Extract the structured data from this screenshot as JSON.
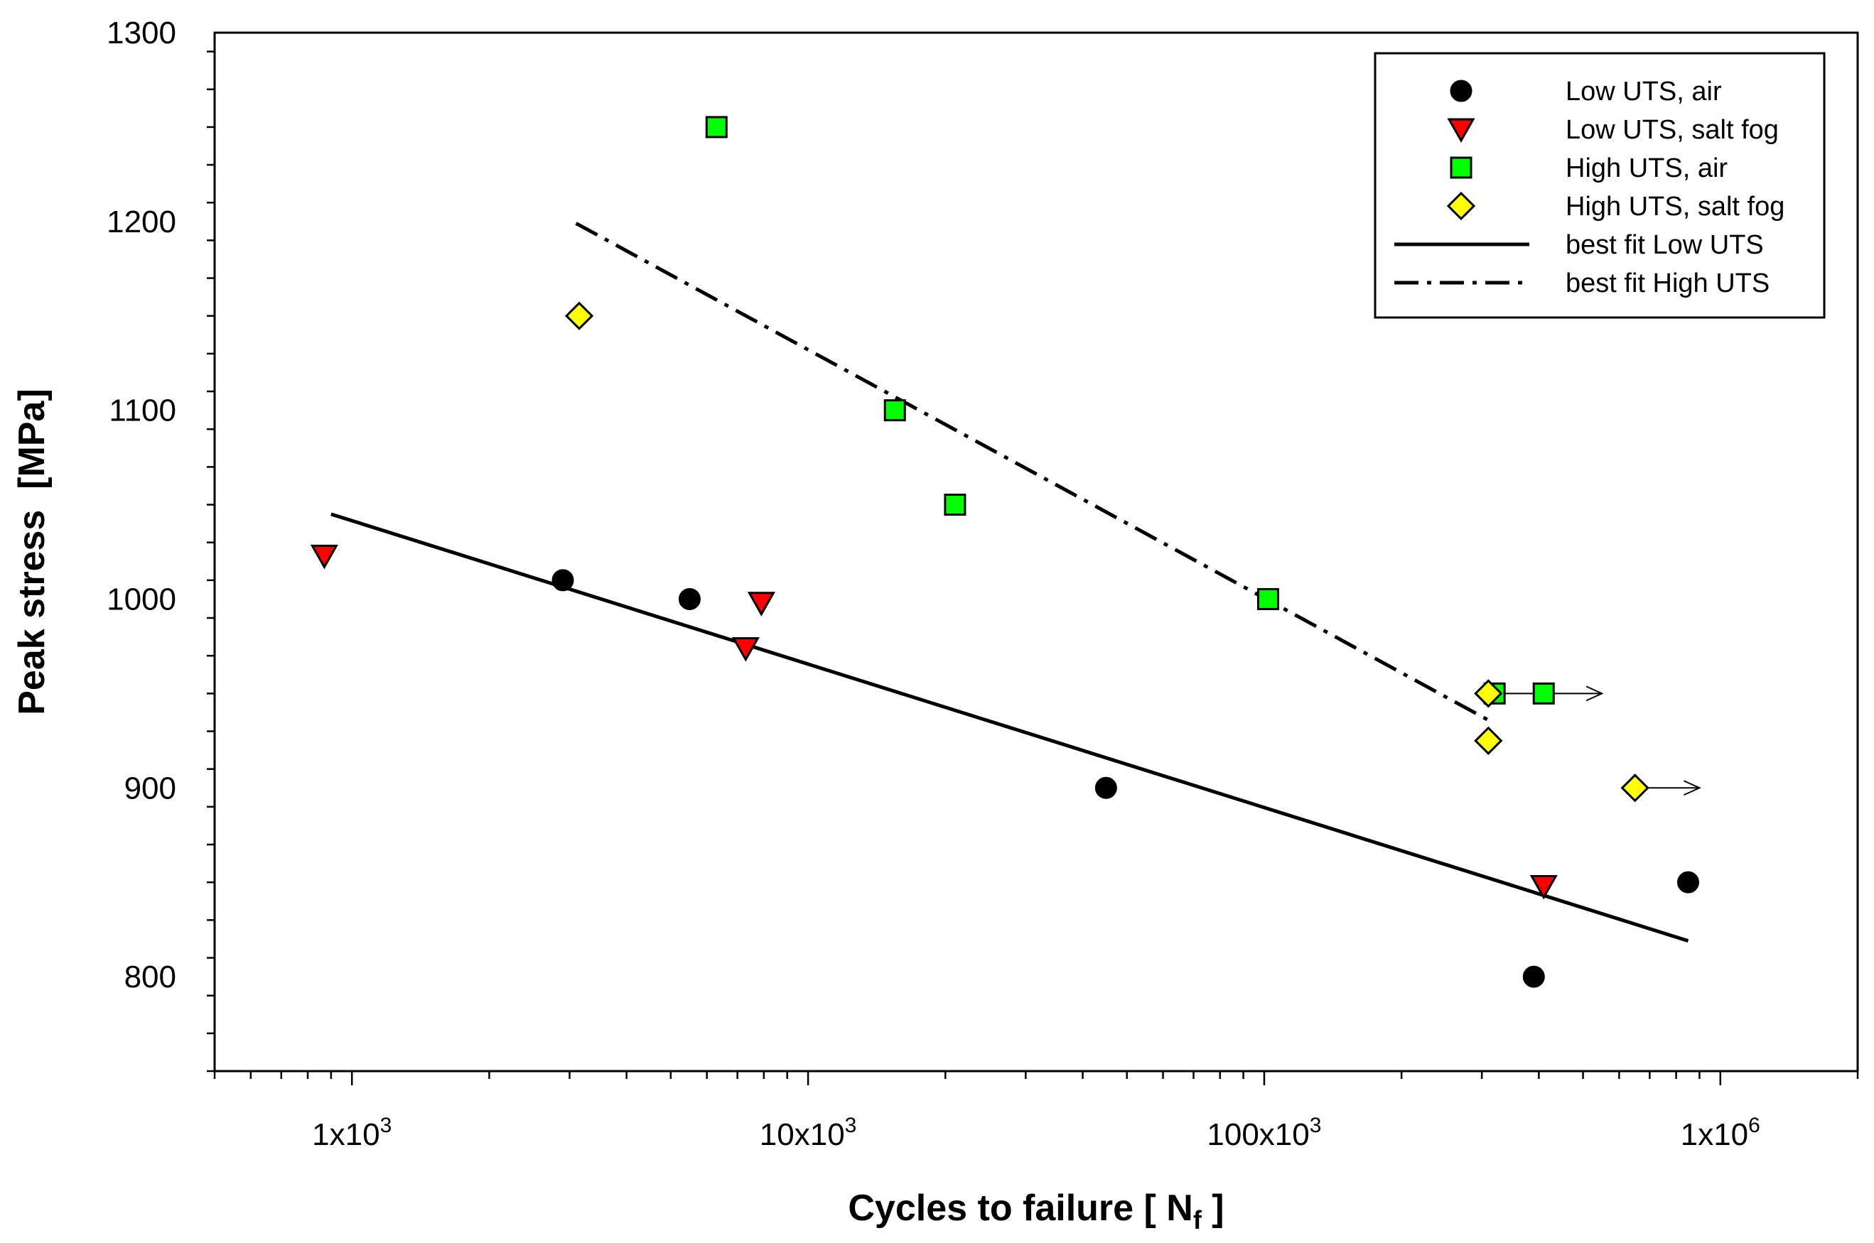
{
  "chart_data": {
    "type": "scatter",
    "title": "",
    "xlabel": "Cycles to failure [ N",
    "xlabel_subscript": "f",
    "xlabel_suffix": " ]",
    "ylabel": "Peak stress  [MPa]",
    "xscale": "log",
    "xlim": [
      500,
      2000000
    ],
    "ylim": [
      750,
      1300
    ],
    "x_ticks": [
      {
        "value": 1000,
        "mant": "1x10",
        "exp": "3"
      },
      {
        "value": 10000,
        "mant": "10x10",
        "exp": "3"
      },
      {
        "value": 100000,
        "mant": "100x10",
        "exp": "3"
      },
      {
        "value": 1000000,
        "mant": "1x10",
        "exp": "6"
      }
    ],
    "y_ticks": [
      800,
      900,
      1000,
      1100,
      1200,
      1300
    ],
    "legend_position": "top-right",
    "series": [
      {
        "name": "Low UTS, air",
        "marker": "circle",
        "color": "#000000",
        "points": [
          [
            2900,
            1010
          ],
          [
            5500,
            1000
          ],
          [
            45000,
            900
          ],
          [
            390000,
            800
          ],
          [
            850000,
            850
          ]
        ]
      },
      {
        "name": "Low UTS, salt fog",
        "marker": "triangle-down",
        "color": "#ff0000",
        "points": [
          [
            870,
            1023
          ],
          [
            7300,
            974
          ],
          [
            7900,
            998
          ],
          [
            410000,
            848
          ]
        ]
      },
      {
        "name": "High UTS, air",
        "marker": "square",
        "color": "#00ff00",
        "points": [
          [
            6300,
            1250
          ],
          [
            15500,
            1100
          ],
          [
            21000,
            1050
          ],
          [
            102000,
            1000
          ],
          [
            320000,
            950
          ],
          [
            410000,
            950
          ]
        ]
      },
      {
        "name": "High UTS, salt fog",
        "marker": "diamond",
        "color": "#ffff00",
        "points": [
          [
            3150,
            1150
          ],
          [
            310000,
            950
          ],
          [
            310000,
            925
          ],
          [
            650000,
            900
          ]
        ]
      }
    ],
    "lines": [
      {
        "name": "best fit Low UTS",
        "style": "solid",
        "points": [
          [
            900,
            1045
          ],
          [
            850000,
            819
          ]
        ]
      },
      {
        "name": "best fit High UTS",
        "style": "dashdot",
        "points": [
          [
            3100,
            1199
          ],
          [
            315000,
            935
          ]
        ]
      }
    ],
    "runout_arrows": [
      {
        "from": [
          330000,
          950
        ],
        "to": [
          550000,
          950
        ]
      },
      {
        "from": [
          680000,
          900
        ],
        "to": [
          900000,
          900
        ]
      }
    ]
  }
}
